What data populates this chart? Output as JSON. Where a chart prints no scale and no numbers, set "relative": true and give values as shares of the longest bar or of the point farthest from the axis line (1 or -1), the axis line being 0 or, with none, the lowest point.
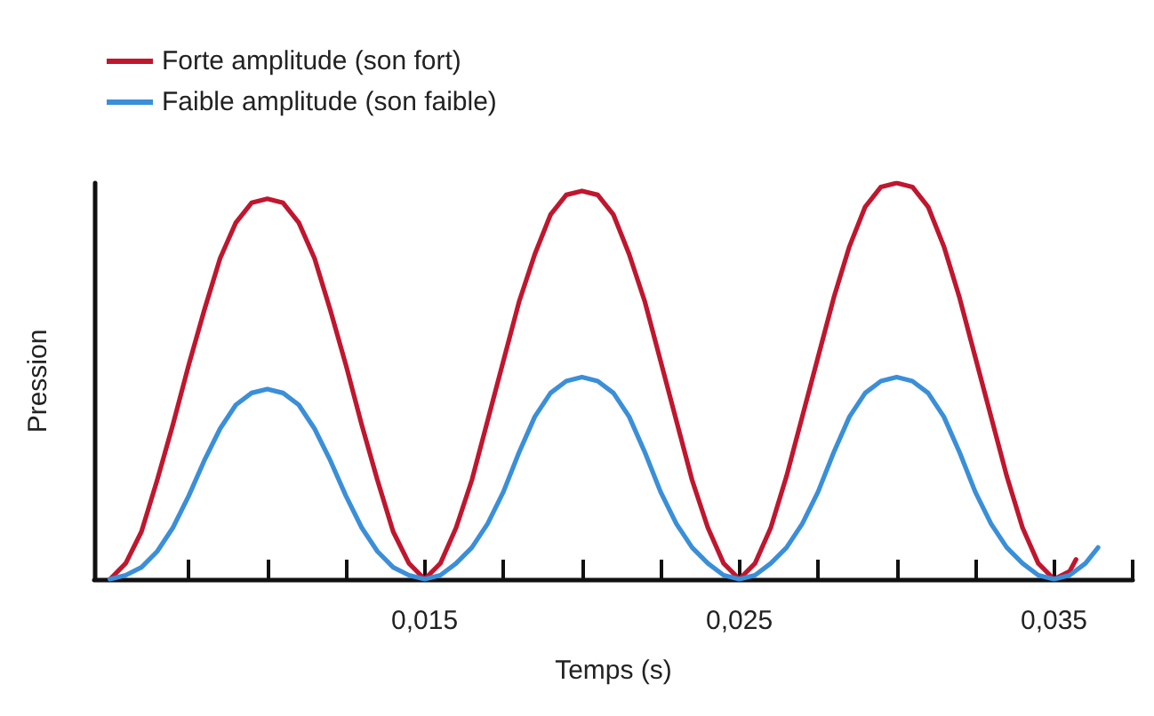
{
  "chart_data": {
    "type": "line",
    "relative": true,
    "xlabel": "Temps (s)",
    "ylabel": "Pression",
    "legend": "top left",
    "tick_labels": "x",
    "marker": "none",
    "line_style": "solid",
    "grid": false,
    "xlim": [
      0.0045,
      0.0375
    ],
    "xticks": [
      {
        "value": 0.0075,
        "label": null
      },
      {
        "value": 0.01,
        "label": null
      },
      {
        "value": 0.0125,
        "label": null
      },
      {
        "value": 0.015,
        "label": "0,015"
      },
      {
        "value": 0.0175,
        "label": null
      },
      {
        "value": 0.02,
        "label": null
      },
      {
        "value": 0.0225,
        "label": null
      },
      {
        "value": 0.025,
        "label": "0,025"
      },
      {
        "value": 0.0275,
        "label": null
      },
      {
        "value": 0.03,
        "label": null
      },
      {
        "value": 0.0325,
        "label": null
      },
      {
        "value": 0.035,
        "label": "0,035"
      },
      {
        "value": 0.0375,
        "label": null
      }
    ],
    "series": [
      {
        "name": "Forte amplitude (son fort)",
        "color": "#c0162e",
        "x": [
          0.005,
          0.0055,
          0.006,
          0.0065,
          0.007,
          0.0075,
          0.008,
          0.0085,
          0.009,
          0.0095,
          0.01,
          0.0105,
          0.011,
          0.0115,
          0.012,
          0.0125,
          0.013,
          0.0135,
          0.014,
          0.0145,
          0.015,
          0.0155,
          0.016,
          0.0165,
          0.017,
          0.0175,
          0.018,
          0.0185,
          0.019,
          0.0195,
          0.02,
          0.0205,
          0.021,
          0.0215,
          0.022,
          0.0225,
          0.023,
          0.0235,
          0.024,
          0.0245,
          0.025,
          0.0255,
          0.026,
          0.0265,
          0.027,
          0.0275,
          0.028,
          0.0285,
          0.029,
          0.0295,
          0.03,
          0.0305,
          0.031,
          0.0315,
          0.032,
          0.0325,
          0.033,
          0.0335,
          0.034,
          0.0345,
          0.035,
          0.0355,
          0.0357
        ],
        "values": [
          0,
          0.04,
          0.12,
          0.25,
          0.39,
          0.54,
          0.68,
          0.81,
          0.9,
          0.95,
          0.96,
          0.95,
          0.9,
          0.81,
          0.68,
          0.54,
          0.39,
          0.25,
          0.12,
          0.04,
          0,
          0.04,
          0.13,
          0.25,
          0.4,
          0.55,
          0.7,
          0.82,
          0.92,
          0.97,
          0.98,
          0.97,
          0.92,
          0.82,
          0.7,
          0.55,
          0.4,
          0.25,
          0.13,
          0.04,
          0,
          0.04,
          0.13,
          0.26,
          0.41,
          0.56,
          0.71,
          0.84,
          0.94,
          0.99,
          1,
          0.99,
          0.94,
          0.84,
          0.71,
          0.56,
          0.41,
          0.26,
          0.13,
          0.04,
          0,
          0.02,
          0.05
        ]
      },
      {
        "name": "Faible amplitude (son faible)",
        "color": "#3a8fd8",
        "x": [
          0.005,
          0.0055,
          0.006,
          0.0065,
          0.007,
          0.0075,
          0.008,
          0.0085,
          0.009,
          0.0095,
          0.01,
          0.0105,
          0.011,
          0.0115,
          0.012,
          0.0125,
          0.013,
          0.0135,
          0.014,
          0.0145,
          0.015,
          0.0155,
          0.016,
          0.0165,
          0.017,
          0.0175,
          0.018,
          0.0185,
          0.019,
          0.0195,
          0.02,
          0.0205,
          0.021,
          0.0215,
          0.022,
          0.0225,
          0.023,
          0.0235,
          0.024,
          0.0245,
          0.025,
          0.0255,
          0.026,
          0.0265,
          0.027,
          0.0275,
          0.028,
          0.0285,
          0.029,
          0.0295,
          0.03,
          0.0305,
          0.031,
          0.0315,
          0.032,
          0.0325,
          0.033,
          0.0335,
          0.034,
          0.0345,
          0.035,
          0.0355,
          0.036,
          0.0364
        ],
        "values": [
          0,
          0.01,
          0.03,
          0.07,
          0.13,
          0.21,
          0.3,
          0.38,
          0.44,
          0.47,
          0.48,
          0.47,
          0.44,
          0.38,
          0.3,
          0.21,
          0.13,
          0.07,
          0.03,
          0.01,
          0,
          0.01,
          0.04,
          0.08,
          0.14,
          0.22,
          0.32,
          0.41,
          0.47,
          0.5,
          0.51,
          0.5,
          0.47,
          0.41,
          0.32,
          0.22,
          0.14,
          0.08,
          0.04,
          0.01,
          0,
          0.01,
          0.04,
          0.08,
          0.14,
          0.22,
          0.32,
          0.41,
          0.47,
          0.5,
          0.51,
          0.5,
          0.47,
          0.41,
          0.32,
          0.22,
          0.14,
          0.08,
          0.04,
          0.01,
          0,
          0.01,
          0.04,
          0.08
        ]
      }
    ]
  }
}
